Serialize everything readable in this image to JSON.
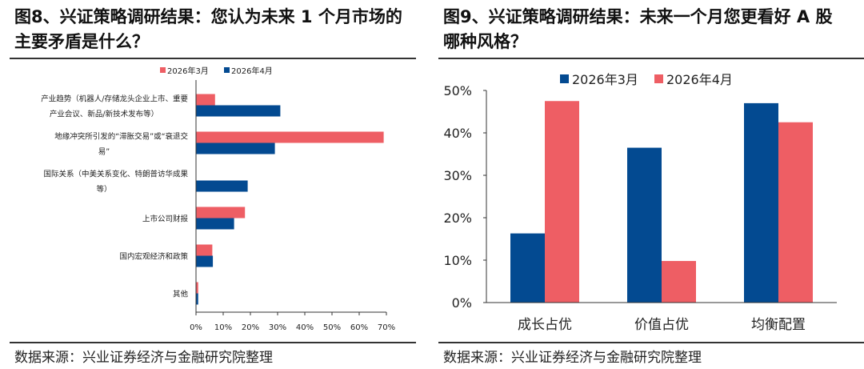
{
  "colors": {
    "blue": "#034a91",
    "red": "#ee5e64"
  },
  "left": {
    "title": "图8、兴证策略调研结果：您认为未来 1 个月市场的主要矛盾是什么？",
    "source": "数据来源：兴业证券经济与金融研究院整理"
  },
  "right": {
    "title": "图9、兴证策略调研结果：未来一个月您更看好 A 股哪种风格？",
    "source": "数据来源：兴业证券经济与金融研究院整理"
  },
  "chart_data": [
    {
      "type": "bar",
      "orientation": "horizontal",
      "categories": [
        [
          "产业趋势（机器人/存储龙头企业上市、重要",
          "产业会议、新品/新技术发布等）"
        ],
        [
          "地缘冲突所引发的“滞胀交易”或“衰退交",
          "易”"
        ],
        [
          "国际关系（中美关系变化、特朗普访华成果",
          "等）"
        ],
        [
          "上市公司财报"
        ],
        [
          "国内宏观经济和政策"
        ],
        [
          "其他"
        ]
      ],
      "series": [
        {
          "name": "2026年3月",
          "color": "#ee5e64",
          "values": [
            7,
            69,
            0,
            18,
            6,
            0.8
          ]
        },
        {
          "name": "2026年4月",
          "color": "#034a91",
          "values": [
            31,
            29,
            19,
            14,
            6.2,
            0.8
          ]
        }
      ],
      "xlim": [
        0,
        70
      ],
      "ticks": [
        "0%",
        "10%",
        "20%",
        "30%",
        "40%",
        "50%",
        "60%",
        "70%"
      ],
      "legend": "top",
      "grid": false
    },
    {
      "type": "bar",
      "categories": [
        "成长占优",
        "价值占优",
        "均衡配置"
      ],
      "series": [
        {
          "name": "2026年3月",
          "color": "#034a91",
          "values": [
            16.3,
            36.5,
            47
          ]
        },
        {
          "name": "2026年4月",
          "color": "#ee5e64",
          "values": [
            47.5,
            9.8,
            42.5
          ]
        }
      ],
      "ylim": [
        0,
        50
      ],
      "ticks": [
        "0%",
        "10%",
        "20%",
        "30%",
        "40%",
        "50%"
      ],
      "legend": "top",
      "grid": false
    }
  ]
}
